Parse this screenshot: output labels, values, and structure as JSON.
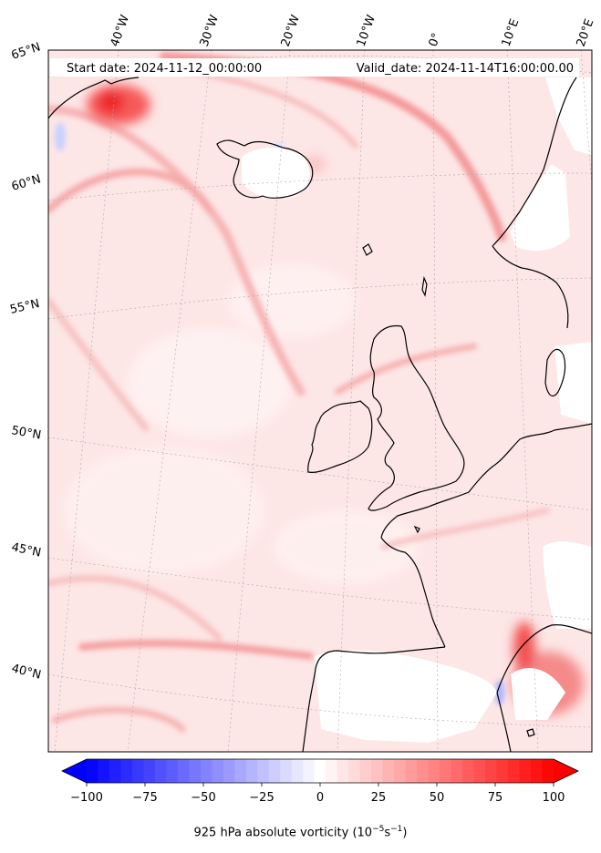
{
  "header": {
    "start_date": "Start date: 2024-11-12_00:00:00",
    "valid_date": "Valid_date: 2024-11-14T16:00:00.00"
  },
  "lon_labels": [
    "40°W",
    "30°W",
    "20°W",
    "10°W",
    "0°",
    "10°E",
    "20°E"
  ],
  "lat_labels": [
    "65°N",
    "60°N",
    "55°N",
    "50°N",
    "45°N",
    "40°N"
  ],
  "colorbar": {
    "ticks": [
      "−100",
      "−75",
      "−50",
      "−25",
      "0",
      "25",
      "50",
      "75",
      "100"
    ],
    "vmin": -100,
    "vmax": 100,
    "levels": 41,
    "low_color": "#0000ff",
    "mid_color": "#ffffff",
    "high_color": "#ff0000",
    "label_main": "925 hPa absolute vorticity (10",
    "label_exp1": "−5",
    "label_mid": "s",
    "label_exp2": "−1",
    "label_end": ")"
  },
  "colors": {
    "field_background": "#fde4e4",
    "coastline": "#000000",
    "land_white": "#ffffff"
  }
}
